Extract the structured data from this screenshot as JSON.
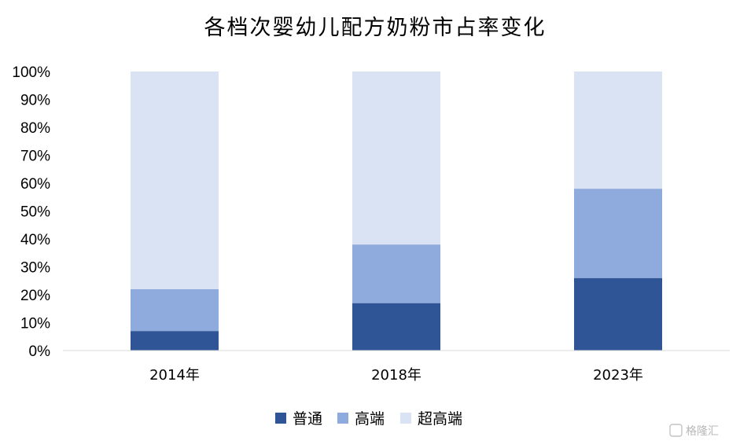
{
  "chart_data": {
    "type": "bar",
    "stacked": true,
    "title": "各档次婴幼儿配方奶粉市占率变化",
    "categories": [
      "2014年",
      "2018年",
      "2023年"
    ],
    "series": [
      {
        "name": "普通",
        "values": [
          7,
          17,
          26
        ],
        "color": "#2f5597"
      },
      {
        "name": "高端",
        "values": [
          15,
          21,
          32
        ],
        "color": "#8faadc"
      },
      {
        "name": "超高端",
        "values": [
          78,
          62,
          42
        ],
        "color": "#dae3f3"
      }
    ],
    "ylim": [
      0,
      100
    ],
    "yticks": [
      "0%",
      "10%",
      "20%",
      "30%",
      "40%",
      "50%",
      "60%",
      "70%",
      "80%",
      "90%",
      "100%"
    ],
    "xlabel": "",
    "ylabel": "",
    "grid": false,
    "legend": "bottom"
  },
  "watermark": "格隆汇"
}
